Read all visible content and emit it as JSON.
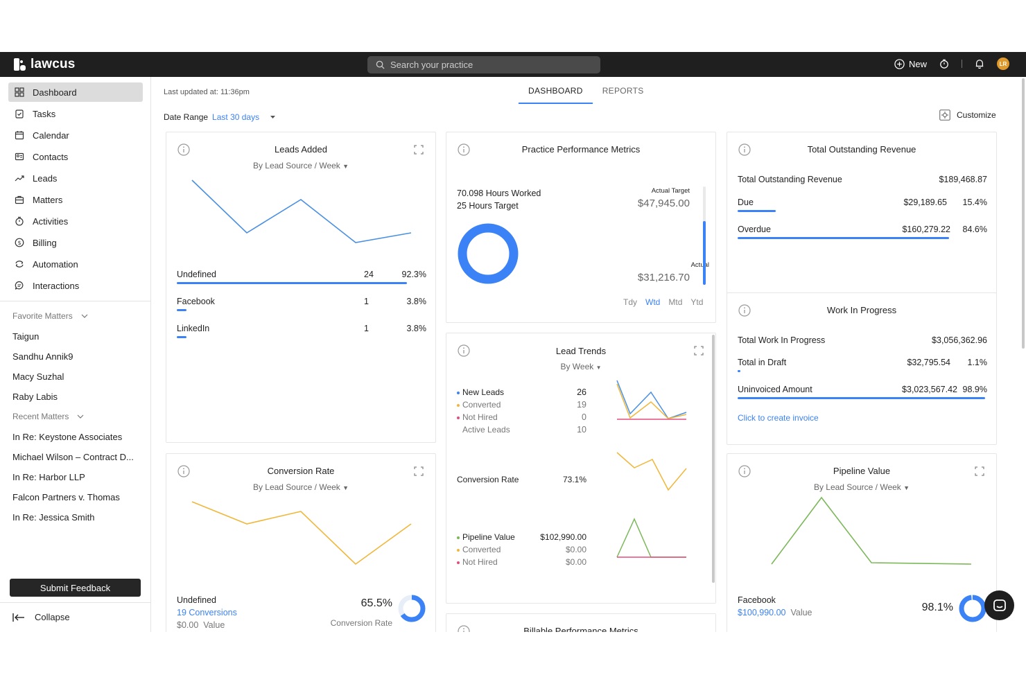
{
  "app": {
    "brand": "lawcus"
  },
  "topbar": {
    "search_placeholder": "Search your practice",
    "new_label": "New",
    "avatar_initials": "LR"
  },
  "sidebar": {
    "nav": [
      {
        "label": "Dashboard",
        "icon": "dashboard-icon",
        "active": true
      },
      {
        "label": "Tasks",
        "icon": "tasks-icon"
      },
      {
        "label": "Calendar",
        "icon": "calendar-icon"
      },
      {
        "label": "Contacts",
        "icon": "contacts-icon"
      },
      {
        "label": "Leads",
        "icon": "leads-icon"
      },
      {
        "label": "Matters",
        "icon": "matters-icon"
      },
      {
        "label": "Activities",
        "icon": "timer-icon"
      },
      {
        "label": "Billing",
        "icon": "billing-icon"
      },
      {
        "label": "Automation",
        "icon": "automation-icon"
      },
      {
        "label": "Interactions",
        "icon": "chat-icon"
      }
    ],
    "favorite_heading": "Favorite Matters",
    "favorites": [
      "Taigun",
      "Sandhu Annik9",
      "Macy Suzhal",
      "Raby Labis"
    ],
    "recent_heading": "Recent Matters",
    "recent": [
      "In Re: Keystone Associates",
      "Michael Wilson – Contract D...",
      "In Re: Harbor LLP",
      "Falcon Partners v. Thomas",
      "In Re: Jessica Smith"
    ],
    "feedback_label": "Submit Feedback",
    "collapse_label": "Collapse"
  },
  "header": {
    "last_updated": "Last updated at: 11:36pm",
    "tabs": [
      "DASHBOARD",
      "REPORTS"
    ],
    "date_range_label": "Date Range",
    "date_range_value": "Last 30 days",
    "customize_label": "Customize"
  },
  "leads_added": {
    "title": "Leads Added",
    "subtitle": "By Lead Source / Week",
    "rows": [
      {
        "label": "Undefined",
        "count": "24",
        "pct": "92.3%",
        "fraction": 0.923
      },
      {
        "label": "Facebook",
        "count": "1",
        "pct": "3.8%",
        "fraction": 0.038
      },
      {
        "label": "LinkedIn",
        "count": "1",
        "pct": "3.8%",
        "fraction": 0.038
      }
    ]
  },
  "practice": {
    "title": "Practice Performance Metrics",
    "hours_worked": "70.098  Hours Worked",
    "hours_target": "25  Hours Target",
    "actual_target_label": "Actual Target",
    "actual_target_value": "$47,945.00",
    "actual_label": "Actual",
    "actual_value": "$31,216.70",
    "periods": [
      "Tdy",
      "Wtd",
      "Mtd",
      "Ytd"
    ],
    "active_period": "Wtd"
  },
  "outstanding": {
    "title": "Total Outstanding Revenue",
    "total_label": "Total Outstanding Revenue",
    "total_value": "$189,468.87",
    "due_label": "Due",
    "due_value": "$29,189.65",
    "due_pct": "15.4%",
    "due_fraction": 0.154,
    "overdue_label": "Overdue",
    "overdue_value": "$160,279.22",
    "overdue_pct": "84.6%",
    "overdue_fraction": 0.846
  },
  "wip": {
    "title": "Work In Progress",
    "total_label": "Total Work In Progress",
    "total_value": "$3,056,362.96",
    "draft_label": "Total in Draft",
    "draft_value": "$32,795.54",
    "draft_pct": "1.1%",
    "draft_fraction": 0.011,
    "uninvoiced_label": "Uninvoiced Amount",
    "uninvoiced_value": "$3,023,567.42",
    "uninvoiced_pct": "98.9%",
    "uninvoiced_fraction": 0.989,
    "invoice_link": "Click to create invoice"
  },
  "lead_trends": {
    "title": "Lead Trends",
    "subtitle": "By Week",
    "new_leads_label": "New Leads",
    "new_leads_value": "26",
    "converted_label": "Converted",
    "converted_value": "19",
    "not_hired_label": "Not Hired",
    "not_hired_value": "0",
    "active_label": "Active Leads",
    "active_value": "10",
    "conv_rate_label": "Conversion Rate",
    "conv_rate_value": "73.1%",
    "pipeline_label": "Pipeline Value",
    "pipeline_value": "$102,990.00",
    "pipe_converted_label": "Converted",
    "pipe_converted_value": "$0.00",
    "pipe_not_hired_label": "Not Hired",
    "pipe_not_hired_value": "$0.00"
  },
  "conversion": {
    "title": "Conversion Rate",
    "subtitle": "By Lead Source / Week",
    "source": "Undefined",
    "conversions": "19 Conversions",
    "value": "$0.00",
    "value_label": "Value",
    "rate": "65.5%",
    "rate_fraction": 0.655,
    "rate_label": "Conversion Rate"
  },
  "pipeline": {
    "title": "Pipeline Value",
    "subtitle": "By Lead Source / Week",
    "source": "Facebook",
    "value": "$100,990.00",
    "value_label": "Value",
    "rate": "98.1%",
    "rate_fraction": 0.981
  },
  "billable": {
    "title": "Billable Performance Metrics"
  },
  "colors": {
    "accent": "#3b82f6",
    "amber": "#f0b73a",
    "green": "#7cb85a",
    "pink": "#e44d7b",
    "dark": "#1f1f1f"
  }
}
